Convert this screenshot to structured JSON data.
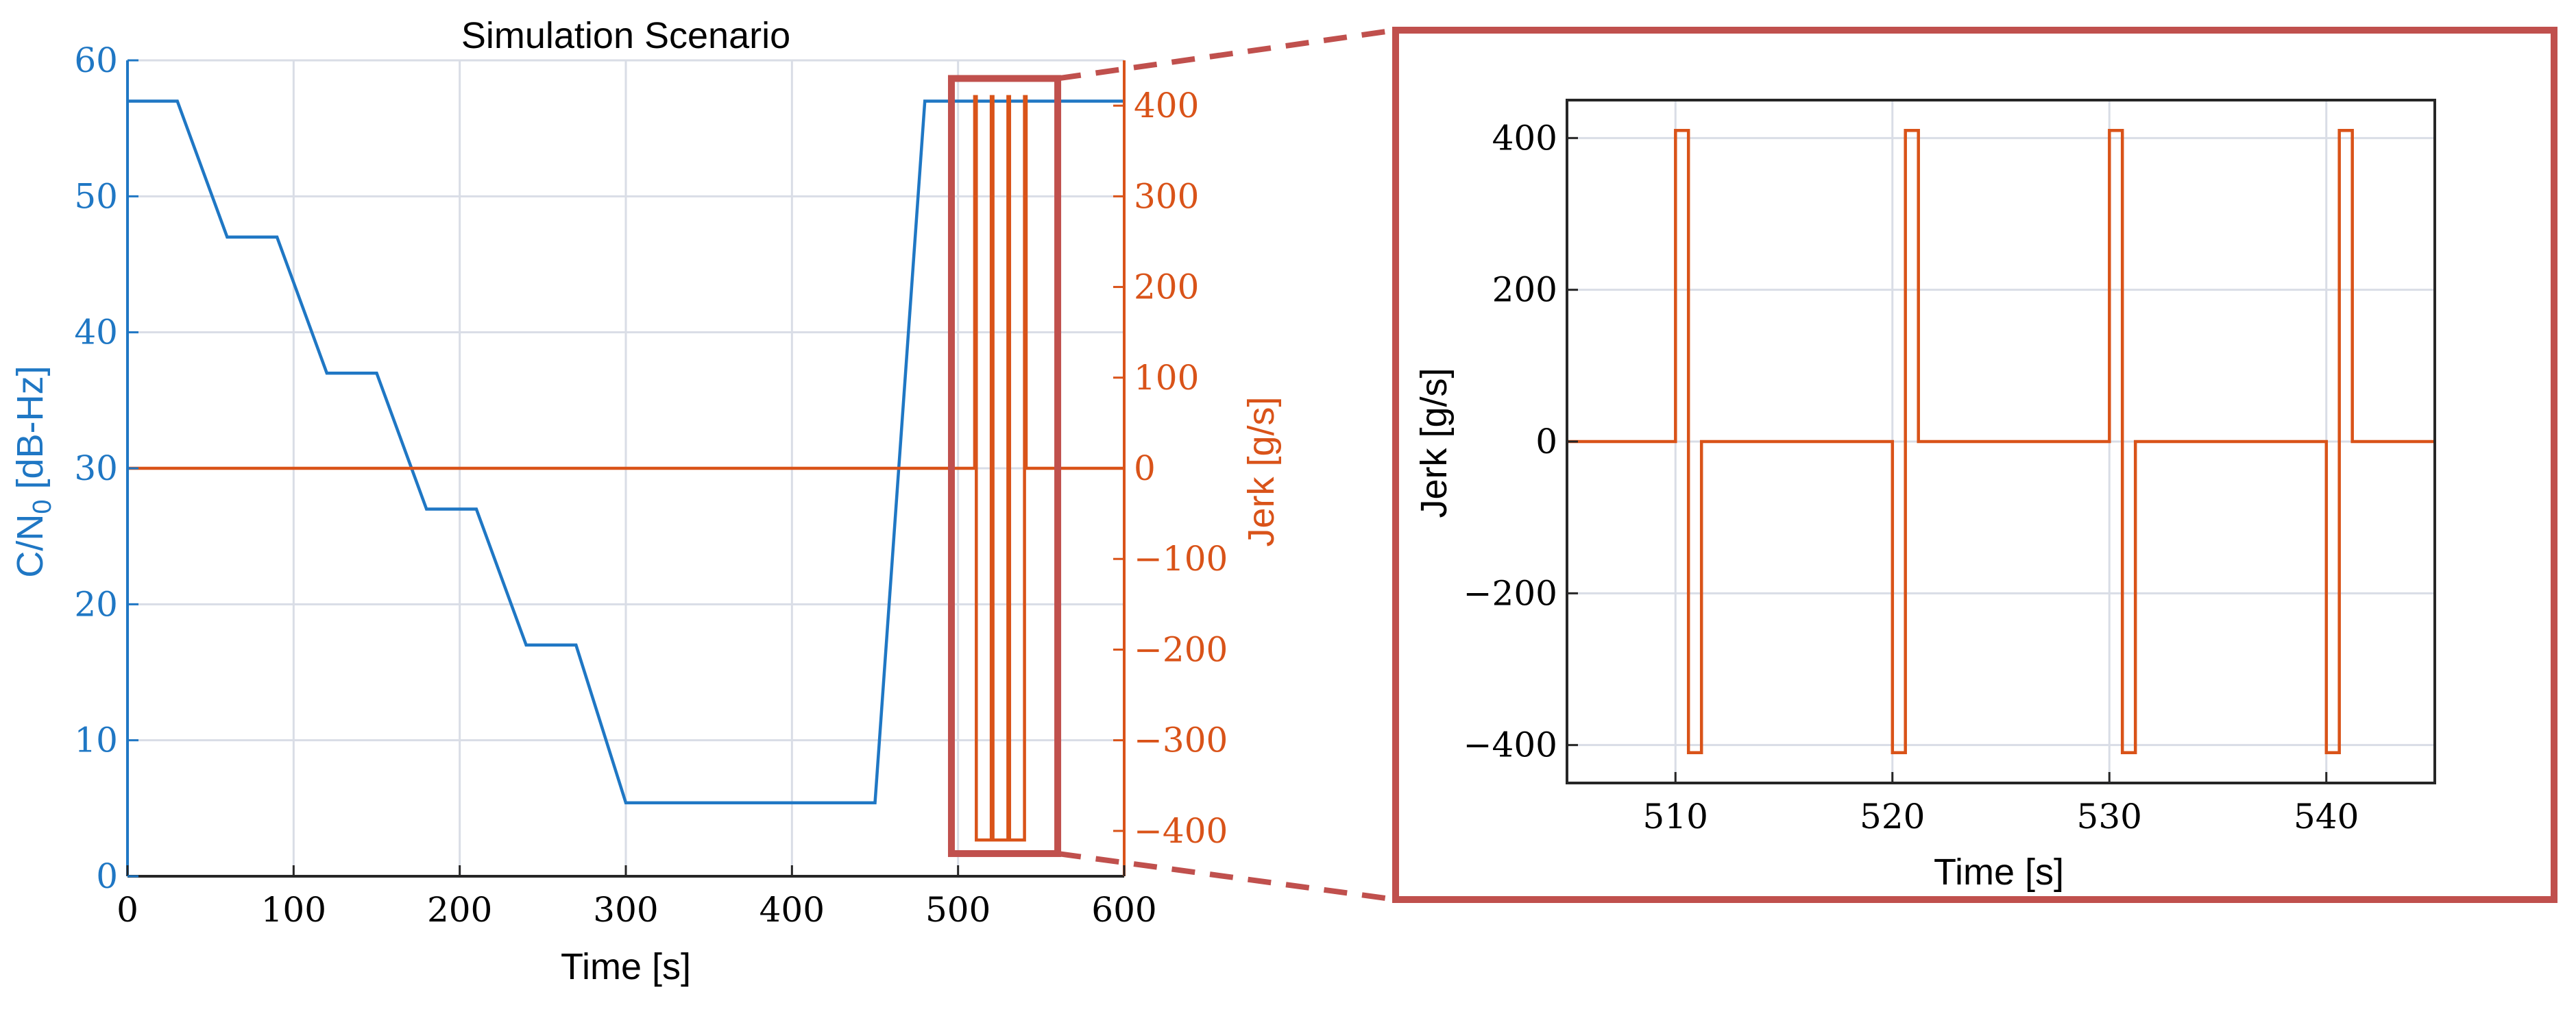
{
  "colors": {
    "cn0": "#1f77c4",
    "jerk": "#d95319",
    "highlight": "#c0504d",
    "grid": "#d9dde6",
    "axis": "#262626"
  },
  "chart_data": [
    {
      "type": "line",
      "title": "Simulation Scenario",
      "xlabel": "Time [s]",
      "ylabel_left": "C/N",
      "ylabel_left_sub": "0",
      "ylabel_left_unit": " [dB-Hz]",
      "ylabel_right": "Jerk [g/s]",
      "xlim": [
        0,
        600
      ],
      "ylim_left": [
        0,
        60
      ],
      "ylim_right": [
        -450,
        450
      ],
      "xticks": [
        0,
        100,
        200,
        300,
        400,
        500,
        600
      ],
      "yticks_left": [
        0,
        10,
        20,
        30,
        40,
        50,
        60
      ],
      "yticks_right": [
        -400,
        -300,
        -200,
        -100,
        0,
        100,
        200,
        300,
        400
      ],
      "yticks_right_labels": [
        "−400",
        "−300",
        "−200",
        "−100",
        "0",
        "100",
        "200",
        "300",
        "400"
      ],
      "grid": true,
      "series": [
        {
          "axis": "left",
          "color": "cn0",
          "x": [
            0,
            30,
            60,
            90,
            120,
            150,
            180,
            210,
            240,
            270,
            300,
            450,
            480,
            600
          ],
          "y": [
            57,
            57,
            47,
            47,
            37,
            37,
            27,
            27,
            17,
            17,
            5.4,
            5.4,
            57,
            57
          ]
        },
        {
          "axis": "right",
          "color": "jerk",
          "x": [
            0,
            510,
            510,
            511,
            511,
            520,
            520,
            521,
            521,
            530,
            530,
            531,
            531,
            540,
            540,
            541,
            541,
            600
          ],
          "y": [
            0,
            0,
            410,
            410,
            -410,
            -410,
            410,
            410,
            -410,
            -410,
            410,
            410,
            -410,
            -410,
            410,
            410,
            0,
            0
          ]
        }
      ],
      "highlight_box": {
        "x": [
          496,
          560
        ],
        "y_right": [
          -425,
          430
        ]
      }
    },
    {
      "type": "line",
      "title": "",
      "xlabel": "Time [s]",
      "ylabel": "Jerk [g/s]",
      "xlim": [
        505,
        545
      ],
      "ylim": [
        -450,
        450
      ],
      "xticks": [
        510,
        520,
        530,
        540
      ],
      "yticks": [
        -400,
        -200,
        0,
        200,
        400
      ],
      "ytick_labels": [
        "−400",
        "−200",
        "0",
        "200",
        "400"
      ],
      "grid": true,
      "series": [
        {
          "color": "jerk",
          "x": [
            505,
            510,
            510,
            510.6,
            510.6,
            511.2,
            511.2,
            520,
            520,
            520.6,
            520.6,
            521.2,
            521.2,
            530,
            530,
            530.6,
            530.6,
            531.2,
            531.2,
            540,
            540,
            540.6,
            540.6,
            541.2,
            541.2,
            545
          ],
          "y": [
            0,
            0,
            410,
            410,
            -410,
            -410,
            0,
            0,
            -410,
            -410,
            410,
            410,
            0,
            0,
            410,
            410,
            -410,
            -410,
            0,
            0,
            -410,
            -410,
            410,
            410,
            0,
            0
          ]
        }
      ]
    }
  ]
}
